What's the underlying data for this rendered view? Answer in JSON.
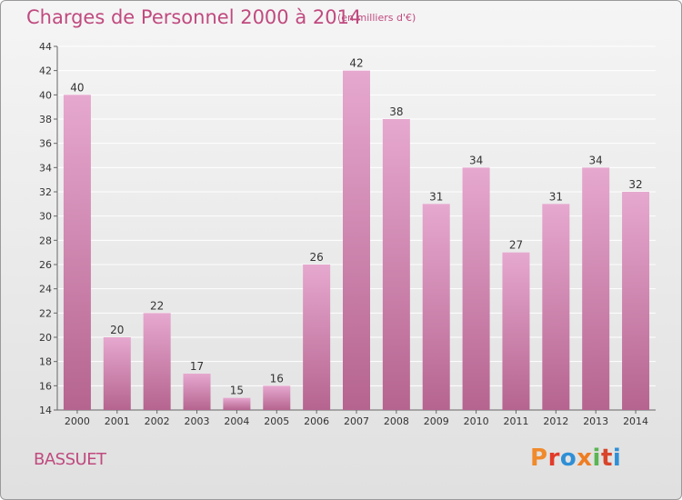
{
  "header": {
    "title": "Charges de Personnel 2000 à 2014",
    "subtitle": "(en milliers d'€)"
  },
  "footer": {
    "commune": "BASSUET",
    "logo_text": "Proxiti",
    "logo_colors": [
      "#f08a2c",
      "#e23b2a",
      "#2f8fd6",
      "#ef7d22",
      "#5ab552",
      "#d8452b",
      "#2f8fd6"
    ]
  },
  "colors": {
    "bar_top": "#e6a8cf",
    "bar_bottom": "#b5648f",
    "text": "#c04a7f",
    "axis": "#666666"
  },
  "chart_data": {
    "type": "bar",
    "categories": [
      "2000",
      "2001",
      "2002",
      "2003",
      "2004",
      "2005",
      "2006",
      "2007",
      "2008",
      "2009",
      "2010",
      "2011",
      "2012",
      "2013",
      "2014"
    ],
    "values": [
      40,
      20,
      22,
      17,
      15,
      16,
      26,
      42,
      38,
      31,
      34,
      27,
      31,
      34,
      32
    ],
    "title": "Charges de Personnel 2000 à 2014",
    "subtitle": "(en milliers d'€)",
    "ylim": [
      14,
      44
    ],
    "yticks": [
      14,
      16,
      18,
      20,
      22,
      24,
      26,
      28,
      30,
      32,
      34,
      36,
      38,
      40,
      42,
      44
    ],
    "grid": true,
    "data_labels": true
  }
}
